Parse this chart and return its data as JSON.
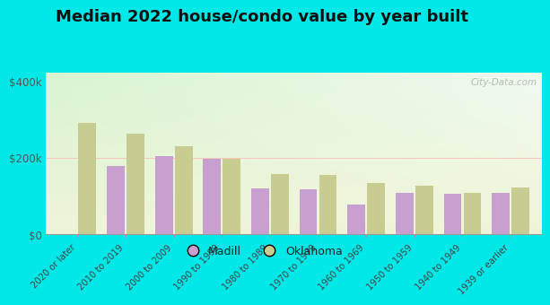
{
  "title": "Median 2022 house/condo value by year built",
  "categories": [
    "2020 or later",
    "2010 to 2019",
    "2000 to 2009",
    "1990 to 1999",
    "1980 to 1989",
    "1970 to 1979",
    "1960 to 1969",
    "1950 to 1959",
    "1940 to 1949",
    "1939 or earlier"
  ],
  "madill": [
    0,
    178000,
    205000,
    198000,
    120000,
    118000,
    78000,
    108000,
    105000,
    108000
  ],
  "oklahoma": [
    290000,
    262000,
    230000,
    198000,
    158000,
    155000,
    133000,
    128000,
    108000,
    123000
  ],
  "madill_color": "#c8a0d0",
  "oklahoma_color": "#c8cc90",
  "bg_outer": "#00e8e8",
  "ylim": [
    0,
    420000
  ],
  "yticks": [
    0,
    200000,
    400000
  ],
  "ytick_labels": [
    "$0",
    "$200k",
    "$400k"
  ],
  "watermark": "City-Data.com",
  "title_fontsize": 13,
  "legend_labels": [
    "Madill",
    "Oklahoma"
  ],
  "grad_top_left": "#d8f0d0",
  "grad_top_right": "#f0f8f0",
  "grad_bottom": "#f0f5d8"
}
